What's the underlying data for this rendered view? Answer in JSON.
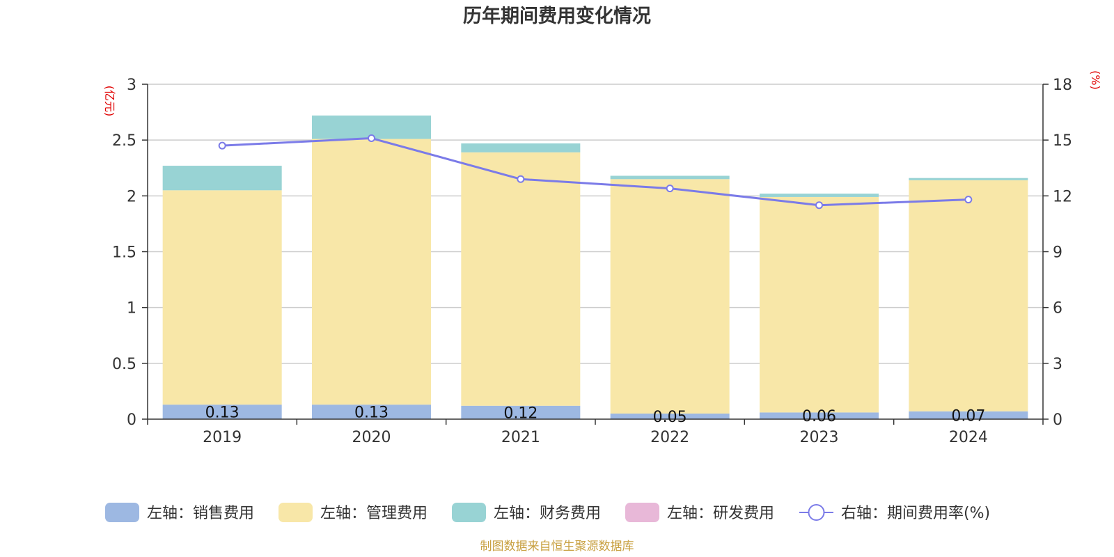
{
  "chart_data": {
    "type": "bar",
    "stacked": true,
    "title": "历年期间费用变化情况",
    "categories": [
      "2019",
      "2020",
      "2021",
      "2022",
      "2023",
      "2024"
    ],
    "left_axis": {
      "unit": "(亿元)",
      "min": 0,
      "max": 3,
      "ticks": [
        "0",
        "0.5",
        "1",
        "1.5",
        "2",
        "2.5",
        "3"
      ]
    },
    "right_axis": {
      "unit": "(%)",
      "min": 0,
      "max": 18,
      "ticks": [
        "0",
        "3",
        "6",
        "9",
        "12",
        "15",
        "18"
      ]
    },
    "series": [
      {
        "name": "左轴：销售费用",
        "type": "bar",
        "axis": "left",
        "color": "#9db8e2",
        "values": [
          0.13,
          0.13,
          0.12,
          0.05,
          0.06,
          0.07
        ],
        "labels": [
          "0.13",
          "0.13",
          "0.12",
          "0.05",
          "0.06",
          "0.07"
        ]
      },
      {
        "name": "左轴：管理费用",
        "type": "bar",
        "axis": "left",
        "color": "#f8e7a8",
        "values": [
          1.92,
          2.38,
          2.27,
          2.1,
          1.93,
          2.07
        ]
      },
      {
        "name": "左轴：财务费用",
        "type": "bar",
        "axis": "left",
        "color": "#98d3d4",
        "values": [
          0.22,
          0.21,
          0.08,
          0.03,
          0.03,
          0.02
        ]
      },
      {
        "name": "左轴：研发费用",
        "type": "bar",
        "axis": "left",
        "color": "#e8b8d8",
        "values": [
          0,
          0,
          0,
          0,
          0,
          0
        ]
      },
      {
        "name": "右轴：期间费用率(%)",
        "type": "line",
        "axis": "right",
        "color": "#7b7be8",
        "values": [
          14.7,
          15.1,
          12.9,
          12.4,
          11.5,
          11.8
        ]
      }
    ],
    "grid": true,
    "legend_position": "bottom"
  },
  "source": "制图数据来自恒生聚源数据库"
}
